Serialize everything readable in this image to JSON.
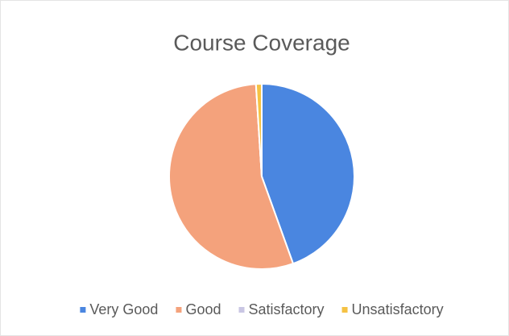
{
  "chart_data": {
    "type": "pie",
    "title": "Course Coverage",
    "categories": [
      "Very Good",
      "Good",
      "Satisfactory",
      "Unsatisfactory"
    ],
    "values": [
      44.5,
      54.5,
      0,
      1
    ],
    "colors": [
      "#4a86e0",
      "#f4a27c",
      "#c9c6e3",
      "#f5c244"
    ],
    "legend": "bottom"
  }
}
